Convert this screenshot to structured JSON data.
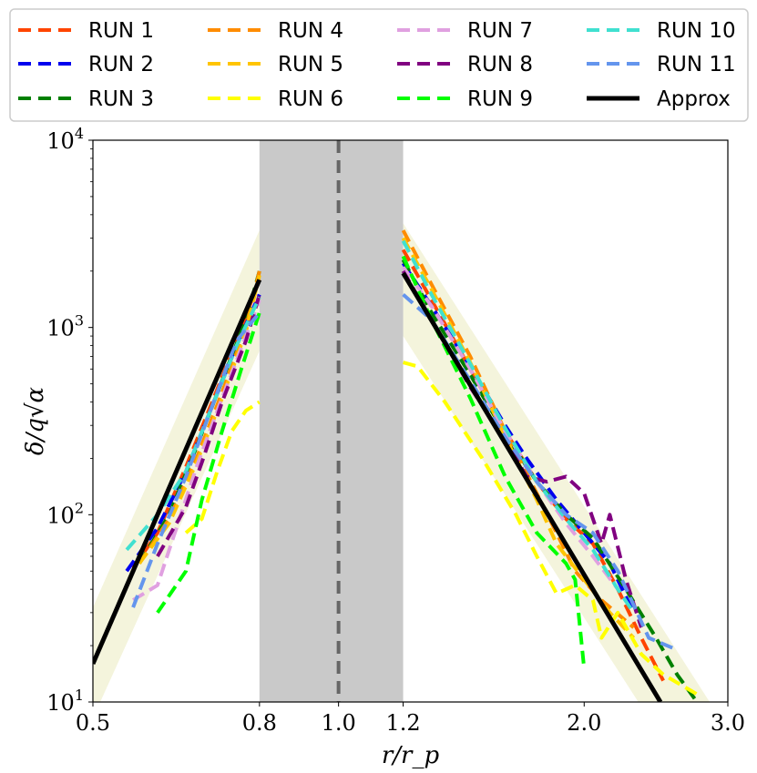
{
  "chart_data": {
    "type": "line",
    "title": "",
    "xlabel": "r/r_p",
    "ylabel": "δ/q√α",
    "xscale": "log",
    "yscale": "log",
    "xlim": [
      0.5,
      3.0
    ],
    "ylim": [
      10,
      10000
    ],
    "x_ticks": [
      0.5,
      0.8,
      1.0,
      1.2,
      2.0,
      3.0
    ],
    "x_tick_labels": [
      "0.5",
      "0.8",
      "1.0",
      "1.2",
      "2.0",
      "3.0"
    ],
    "y_ticks": [
      10,
      100,
      1000,
      10000
    ],
    "y_tick_labels": [
      {
        "base": "10",
        "exp": "1"
      },
      {
        "base": "10",
        "exp": "2"
      },
      {
        "base": "10",
        "exp": "3"
      },
      {
        "base": "10",
        "exp": "4"
      }
    ],
    "legend_position": "top, outside plot, 4 columns",
    "shaded_gap": {
      "x0": 0.8,
      "x1": 1.2,
      "color": "#c9c9c9"
    },
    "planet_line": {
      "x": 1.0,
      "color": "#666666"
    },
    "uncertainty_band_color": "#f4f4dc",
    "bands": [
      {
        "inner": [
          [
            0.5,
            32
          ],
          [
            0.8,
            3300
          ]
        ],
        "outer": [
          [
            0.8,
            750
          ],
          [
            0.5,
            8.2
          ]
        ]
      },
      {
        "inner": [
          [
            1.2,
            3600
          ],
          [
            2.85,
            10
          ]
        ],
        "outer": [
          [
            2.33,
            10
          ],
          [
            1.2,
            900
          ]
        ]
      }
    ],
    "series": [
      {
        "name": "RUN 1",
        "color": "#ff4500",
        "dash": true,
        "inner": [
          [
            0.56,
            52
          ],
          [
            0.6,
            80
          ],
          [
            0.65,
            180
          ],
          [
            0.7,
            400
          ],
          [
            0.75,
            850
          ],
          [
            0.8,
            1800
          ]
        ],
        "outer": [
          [
            1.2,
            2600
          ],
          [
            1.3,
            1400
          ],
          [
            1.45,
            600
          ],
          [
            1.6,
            280
          ],
          [
            1.75,
            150
          ],
          [
            1.9,
            95
          ],
          [
            2.05,
            70
          ],
          [
            2.2,
            40
          ],
          [
            2.35,
            22
          ],
          [
            2.5,
            13
          ]
        ]
      },
      {
        "name": "RUN 2",
        "color": "#0000ee",
        "dash": true,
        "inner": [
          [
            0.55,
            50
          ],
          [
            0.6,
            85
          ],
          [
            0.65,
            170
          ],
          [
            0.7,
            380
          ],
          [
            0.75,
            800
          ],
          [
            0.8,
            1500
          ]
        ],
        "outer": [
          [
            1.2,
            2200
          ],
          [
            1.3,
            1300
          ],
          [
            1.45,
            620
          ],
          [
            1.6,
            300
          ],
          [
            1.7,
            200
          ],
          [
            1.85,
            120
          ],
          [
            2.0,
            80
          ],
          [
            2.15,
            55
          ],
          [
            2.3,
            30
          ]
        ]
      },
      {
        "name": "RUN 3",
        "color": "#008000",
        "dash": true,
        "inner": [
          [
            0.57,
            55
          ],
          [
            0.62,
            100
          ],
          [
            0.67,
            230
          ],
          [
            0.72,
            520
          ],
          [
            0.77,
            1100
          ],
          [
            0.8,
            2000
          ]
        ],
        "outer": [
          [
            1.2,
            2300
          ],
          [
            1.3,
            1200
          ],
          [
            1.45,
            560
          ],
          [
            1.6,
            270
          ],
          [
            1.75,
            150
          ],
          [
            1.9,
            100
          ],
          [
            2.05,
            75
          ],
          [
            2.25,
            40
          ],
          [
            2.45,
            22
          ],
          [
            2.6,
            14
          ],
          [
            2.75,
            10
          ]
        ]
      },
      {
        "name": "RUN 4",
        "color": "#ff8c00",
        "dash": true,
        "inner": [
          [
            0.57,
            55
          ],
          [
            0.62,
            95
          ],
          [
            0.67,
            200
          ],
          [
            0.72,
            450
          ],
          [
            0.77,
            1000
          ],
          [
            0.8,
            2000
          ]
        ],
        "outer": [
          [
            1.2,
            3300
          ],
          [
            1.3,
            1700
          ],
          [
            1.45,
            700
          ],
          [
            1.6,
            280
          ],
          [
            1.75,
            130
          ],
          [
            1.85,
            80
          ],
          [
            1.95,
            50
          ],
          [
            2.1,
            35
          ],
          [
            2.3,
            25
          ]
        ]
      },
      {
        "name": "RUN 5",
        "color": "#ffc400",
        "dash": true,
        "inner": [
          [
            0.57,
            55
          ],
          [
            0.62,
            90
          ],
          [
            0.67,
            190
          ],
          [
            0.72,
            420
          ],
          [
            0.77,
            950
          ],
          [
            0.8,
            1900
          ]
        ],
        "outer": [
          [
            1.2,
            3000
          ],
          [
            1.3,
            1600
          ],
          [
            1.45,
            650
          ],
          [
            1.6,
            260
          ],
          [
            1.75,
            120
          ],
          [
            1.85,
            70
          ],
          [
            2.0,
            45
          ],
          [
            2.15,
            30
          ],
          [
            2.3,
            22
          ]
        ]
      },
      {
        "name": "RUN 6",
        "color": "#ffff00",
        "dash": true,
        "inner": [
          [
            0.65,
            80
          ],
          [
            0.68,
            95
          ],
          [
            0.71,
            170
          ],
          [
            0.74,
            280
          ],
          [
            0.77,
            360
          ],
          [
            0.8,
            400
          ]
        ],
        "outer": [
          [
            1.2,
            650
          ],
          [
            1.25,
            620
          ],
          [
            1.35,
            400
          ],
          [
            1.5,
            200
          ],
          [
            1.65,
            100
          ],
          [
            1.75,
            60
          ],
          [
            1.85,
            38
          ],
          [
            1.95,
            42
          ],
          [
            2.05,
            35
          ],
          [
            2.1,
            22
          ],
          [
            2.2,
            30
          ],
          [
            2.35,
            18
          ],
          [
            2.5,
            14
          ],
          [
            2.75,
            11
          ]
        ]
      },
      {
        "name": "RUN 7",
        "color": "#e0a0e0",
        "dash": true,
        "inner": [
          [
            0.56,
            35
          ],
          [
            0.6,
            42
          ],
          [
            0.63,
            80
          ],
          [
            0.67,
            180
          ],
          [
            0.72,
            420
          ],
          [
            0.77,
            900
          ],
          [
            0.8,
            1400
          ]
        ],
        "outer": [
          [
            1.2,
            2100
          ],
          [
            1.3,
            1300
          ],
          [
            1.45,
            600
          ],
          [
            1.6,
            280
          ],
          [
            1.75,
            150
          ],
          [
            1.9,
            90
          ],
          [
            2.05,
            60
          ],
          [
            2.2,
            40
          ]
        ]
      },
      {
        "name": "RUN 8",
        "color": "#800080",
        "dash": true,
        "inner": [
          [
            0.6,
            60
          ],
          [
            0.65,
            110
          ],
          [
            0.68,
            190
          ],
          [
            0.72,
            400
          ],
          [
            0.77,
            850
          ],
          [
            0.8,
            1500
          ]
        ],
        "outer": [
          [
            1.2,
            2000
          ],
          [
            1.3,
            1100
          ],
          [
            1.45,
            480
          ],
          [
            1.6,
            250
          ],
          [
            1.7,
            160
          ],
          [
            1.8,
            150
          ],
          [
            1.9,
            160
          ],
          [
            2.0,
            130
          ],
          [
            2.1,
            70
          ],
          [
            2.15,
            100
          ],
          [
            2.25,
            45
          ],
          [
            2.35,
            25
          ]
        ]
      },
      {
        "name": "RUN 9",
        "color": "#00ff00",
        "dash": true,
        "inner": [
          [
            0.6,
            30
          ],
          [
            0.65,
            50
          ],
          [
            0.68,
            120
          ],
          [
            0.72,
            280
          ],
          [
            0.76,
            600
          ],
          [
            0.8,
            1200
          ]
        ],
        "outer": [
          [
            1.2,
            2400
          ],
          [
            1.3,
            1100
          ],
          [
            1.45,
            420
          ],
          [
            1.6,
            160
          ],
          [
            1.75,
            80
          ],
          [
            1.9,
            55
          ],
          [
            1.95,
            45
          ],
          [
            2.0,
            15
          ]
        ]
      },
      {
        "name": "RUN 10",
        "color": "#40e0d0",
        "dash": true,
        "inner": [
          [
            0.55,
            65
          ],
          [
            0.6,
            100
          ],
          [
            0.65,
            170
          ],
          [
            0.7,
            380
          ],
          [
            0.75,
            800
          ],
          [
            0.8,
            1450
          ]
        ],
        "outer": [
          [
            1.2,
            2900
          ],
          [
            1.3,
            1500
          ],
          [
            1.45,
            640
          ],
          [
            1.6,
            290
          ],
          [
            1.75,
            150
          ],
          [
            1.9,
            95
          ],
          [
            2.05,
            65
          ],
          [
            2.2,
            40
          ],
          [
            2.3,
            30
          ]
        ]
      },
      {
        "name": "RUN 11",
        "color": "#6495ed",
        "dash": true,
        "inner": [
          [
            0.56,
            32
          ],
          [
            0.6,
            70
          ],
          [
            0.65,
            160
          ],
          [
            0.7,
            380
          ],
          [
            0.75,
            850
          ],
          [
            0.8,
            1200
          ]
        ],
        "outer": [
          [
            1.2,
            1500
          ],
          [
            1.3,
            1100
          ],
          [
            1.45,
            520
          ],
          [
            1.6,
            260
          ],
          [
            1.75,
            150
          ],
          [
            1.9,
            100
          ],
          [
            2.05,
            80
          ],
          [
            2.2,
            50
          ],
          [
            2.4,
            22
          ],
          [
            2.6,
            19
          ]
        ]
      },
      {
        "name": "Approx",
        "color": "#000000",
        "dash": false,
        "inner": [
          [
            0.5,
            16
          ],
          [
            0.8,
            1800
          ]
        ],
        "outer": [
          [
            1.2,
            1950
          ],
          [
            2.48,
            10
          ]
        ]
      }
    ]
  }
}
